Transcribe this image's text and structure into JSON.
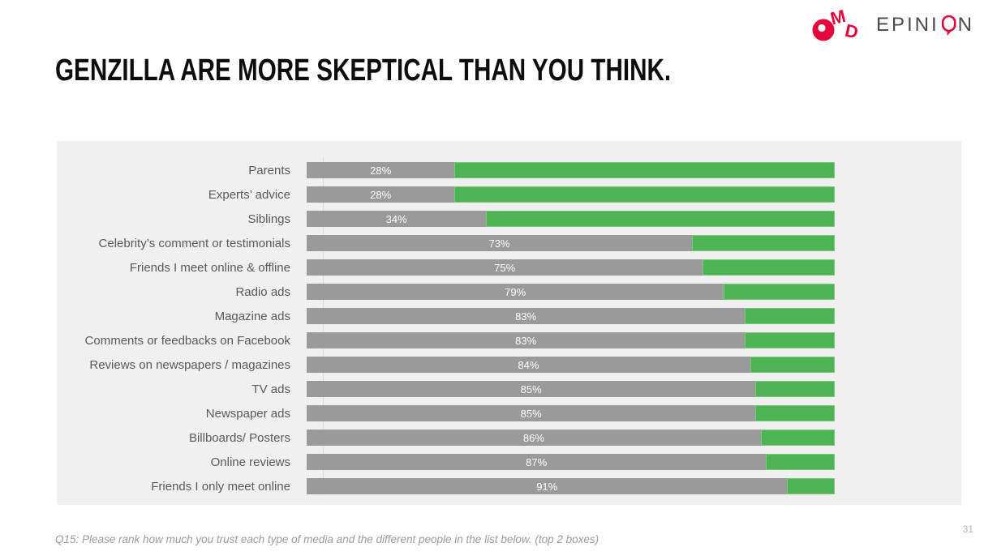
{
  "header": {
    "title": "GENZILLA ARE MORE SKEPTICAL THAN YOU THINK.",
    "omd_logo_text": "OMD",
    "epinion_before": "EPINI",
    "epinion_after": "N"
  },
  "footer": {
    "note": "Q15: Please rank how much you trust each type of media and the different people in the list below. (top 2 boxes)",
    "page_number": "31"
  },
  "colors": {
    "title_text": "#0d0d0d",
    "brand_red": "#e4063a",
    "epinion_text": "#4b4b4d",
    "panel_bg": "#f0f0f1",
    "bar_gray": "#9a9a9a",
    "bar_green": "#4db456",
    "green_border": "#7cc979",
    "label_text": "#595959",
    "value_text": "#ffffff",
    "axis_line": "#d9d9d9",
    "footer_text": "#9b9b9b",
    "page_num_text": "#b3b3b3"
  },
  "chart_data": {
    "type": "bar",
    "orientation": "horizontal",
    "stacked": true,
    "xlim": [
      0,
      100
    ],
    "grid": false,
    "legend": "none",
    "categories": [
      "Parents",
      "Experts’ advice",
      "Siblings",
      "Celebrity’s comment or testimonials",
      "Friends I meet online & offline",
      "Radio ads",
      "Magazine ads",
      "Comments or feedbacks on Facebook",
      "Reviews on newspapers / magazines",
      "TV ads",
      "Newspaper ads",
      "Billboards/ Posters",
      "Online reviews",
      "Friends I only meet online"
    ],
    "series": [
      {
        "name": "gray-segment",
        "color": "#9a9a9a",
        "values": [
          28,
          28,
          34,
          73,
          75,
          79,
          83,
          83,
          84,
          85,
          85,
          86,
          87,
          91
        ],
        "labels": [
          "28%",
          "28%",
          "34%",
          "73%",
          "75%",
          "79%",
          "83%",
          "83%",
          "84%",
          "85%",
          "85%",
          "86%",
          "87%",
          "91%"
        ]
      },
      {
        "name": "green-segment",
        "color": "#4db456",
        "values": [
          72,
          72,
          66,
          27,
          25,
          21,
          17,
          17,
          16,
          15,
          15,
          14,
          13,
          9
        ]
      }
    ]
  }
}
